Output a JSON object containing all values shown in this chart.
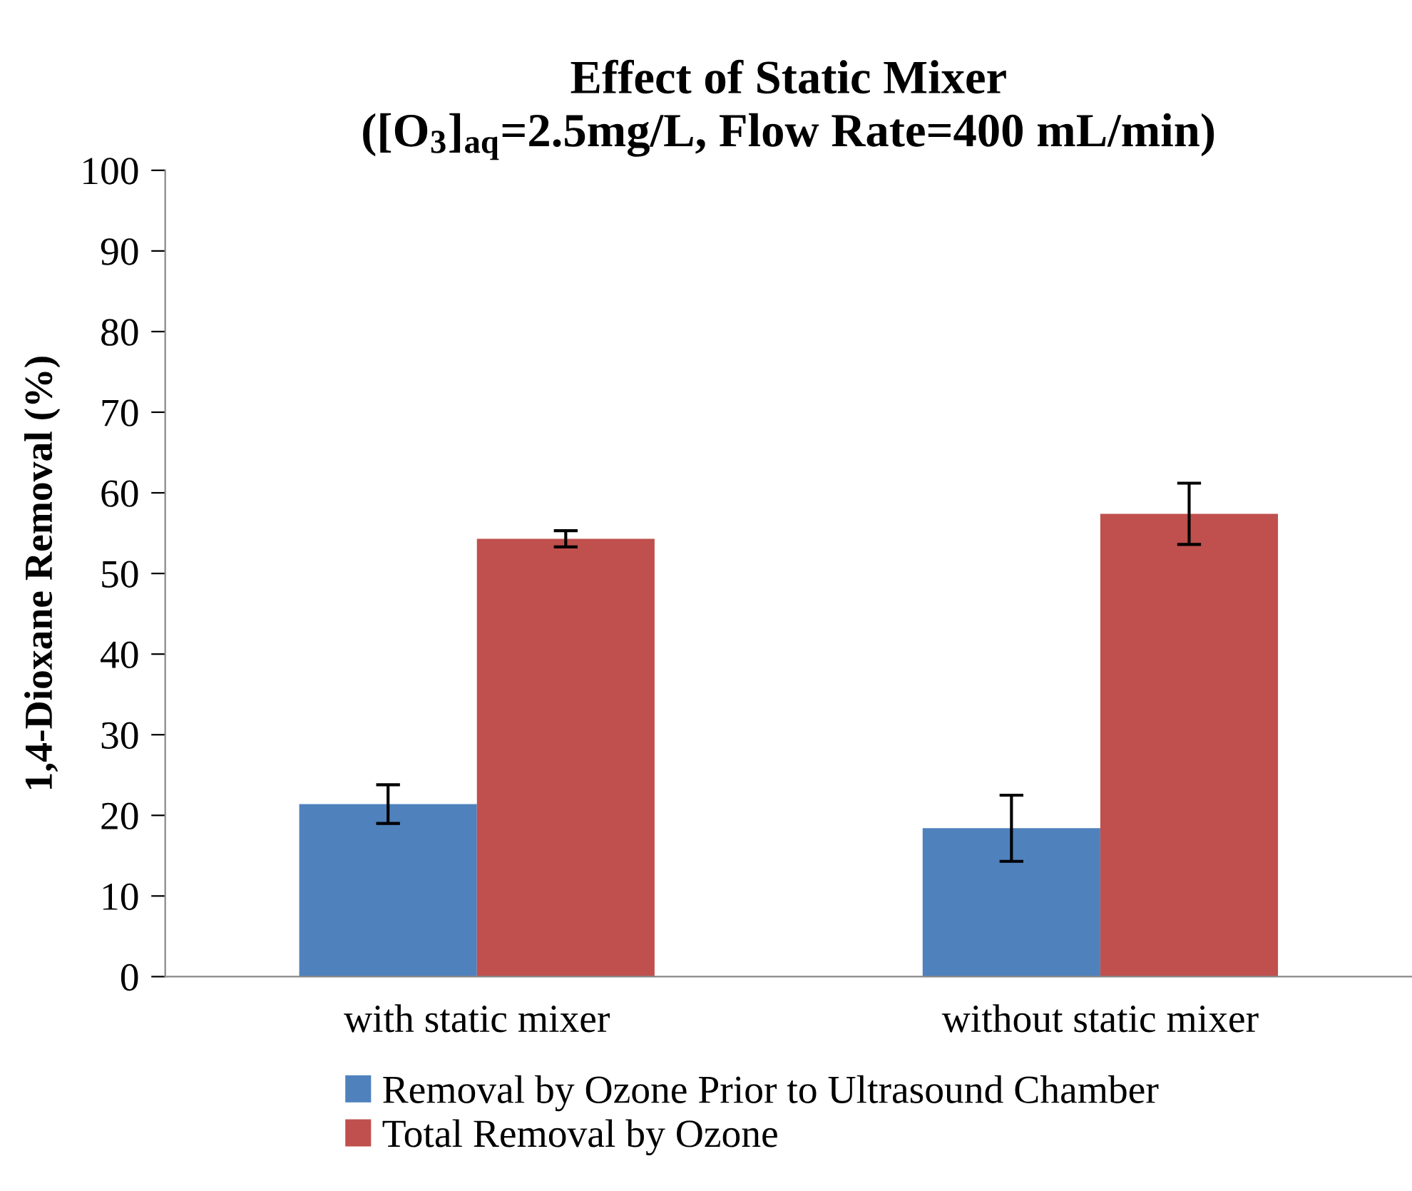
{
  "chart_data": {
    "type": "bar",
    "title": "Effect of Static Mixer\n([O$_{3}$]$_{aq}$=2.5mg/L, Flow Rate=400 mL/min)",
    "ylabel": "1,4-Dioxane Removal (%)",
    "categories": [
      "with static mixer",
      "without static mixer"
    ],
    "series": [
      {
        "name": "Removal by Ozone Prior to Ultrasound Chamber",
        "color": "#4f81bd",
        "values": [
          21.4,
          18.4
        ],
        "errors": [
          2.4,
          4.1
        ]
      },
      {
        "name": "Total Removal by Ozone",
        "color": "#c0504d",
        "values": [
          54.3,
          57.4
        ],
        "errors": [
          1.0,
          3.8
        ]
      }
    ],
    "ylim": [
      0,
      100
    ],
    "yticks": [
      0,
      10,
      20,
      30,
      40,
      50,
      60,
      70,
      80,
      90,
      100
    ],
    "grid": false,
    "legend": "bottom"
  }
}
